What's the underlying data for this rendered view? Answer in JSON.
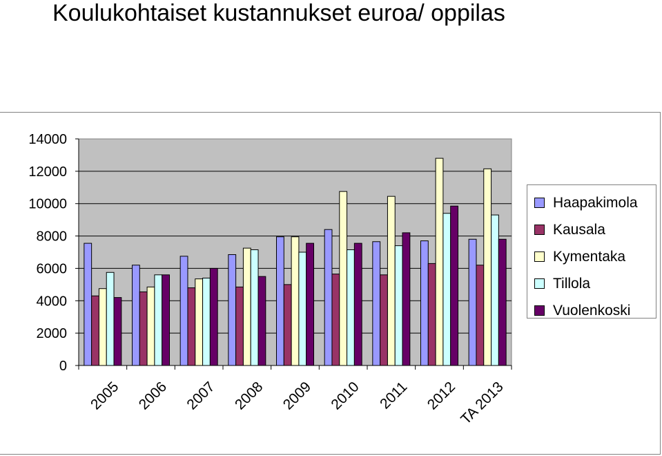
{
  "title": "Koulukohtaiset kustannukset euroa/ oppilas",
  "chart_data": {
    "type": "bar",
    "title": "Koulukohtaiset kustannukset euroa/ oppilas",
    "categories": [
      "2005",
      "2006",
      "2007",
      "2008",
      "2009",
      "2010",
      "2011",
      "2012",
      "TA 2013"
    ],
    "series": [
      {
        "name": "Haapakimola",
        "color": "#9999ff",
        "values": [
          7550,
          6200,
          6750,
          6850,
          7950,
          8400,
          7650,
          7700,
          7800
        ]
      },
      {
        "name": "Kausala",
        "color": "#993366",
        "values": [
          4300,
          4550,
          4800,
          4850,
          5000,
          5650,
          5600,
          6300,
          6200
        ]
      },
      {
        "name": "Kymentaka",
        "color": "#ffffcc",
        "values": [
          4750,
          4850,
          5350,
          7250,
          7950,
          10750,
          10450,
          12800,
          12150
        ]
      },
      {
        "name": "Tillola",
        "color": "#ccffff",
        "values": [
          5750,
          5600,
          5400,
          7150,
          7000,
          7150,
          7400,
          9400,
          9300
        ]
      },
      {
        "name": "Vuolenkoski",
        "color": "#660066",
        "values": [
          4200,
          5600,
          6000,
          5500,
          7550,
          7550,
          8200,
          9850,
          7800
        ]
      }
    ],
    "ylim": [
      0,
      14000
    ],
    "yticks": [
      "0",
      "2000",
      "4000",
      "6000",
      "8000",
      "10000",
      "12000",
      "14000"
    ],
    "grid": true,
    "legend_position": "right",
    "plot_background": "#c0c0c0"
  }
}
